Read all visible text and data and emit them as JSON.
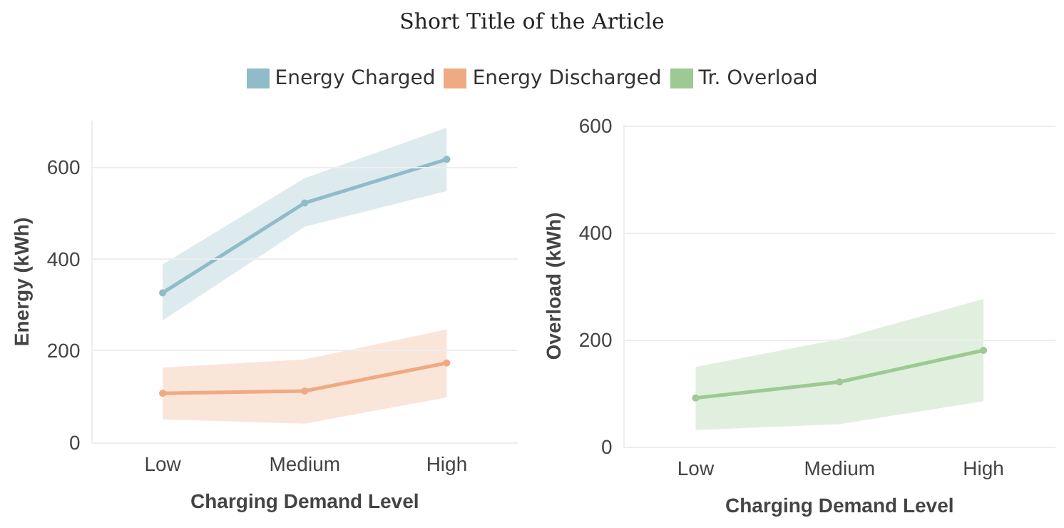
{
  "chart_data": [
    {
      "type": "line",
      "title": "Short Title of the Article",
      "xlabel": "Charging Demand Level",
      "ylabel": "Energy (kWh)",
      "categories": [
        "Low",
        "Medium",
        "High"
      ],
      "ylim": [
        0,
        700
      ],
      "yticks": [
        0,
        200,
        400,
        600
      ],
      "grid": "y",
      "legend": "top",
      "marker": "circle",
      "series": [
        {
          "name": "Energy Charged",
          "color": "#8fbcc8",
          "values": [
            326,
            522,
            617
          ],
          "lower": [
            266,
            470,
            548
          ],
          "upper": [
            388,
            576,
            686
          ]
        },
        {
          "name": "Energy Discharged",
          "color": "#f0aa82",
          "values": [
            107,
            112,
            173
          ],
          "lower": [
            50,
            41,
            98
          ],
          "upper": [
            163,
            181,
            246
          ]
        }
      ]
    },
    {
      "type": "line",
      "xlabel": "Charging Demand Level",
      "ylabel": "Overload (kWh)",
      "categories": [
        "Low",
        "Medium",
        "High"
      ],
      "ylim": [
        0,
        600
      ],
      "yticks": [
        0,
        200,
        400,
        600
      ],
      "grid": "y",
      "legend": "top",
      "marker": "circle",
      "series": [
        {
          "name": "Tr. Overload",
          "color": "#9dc993",
          "values": [
            91,
            121,
            180
          ],
          "lower": [
            31,
            42,
            85
          ],
          "upper": [
            149,
            201,
            276
          ]
        }
      ]
    }
  ]
}
